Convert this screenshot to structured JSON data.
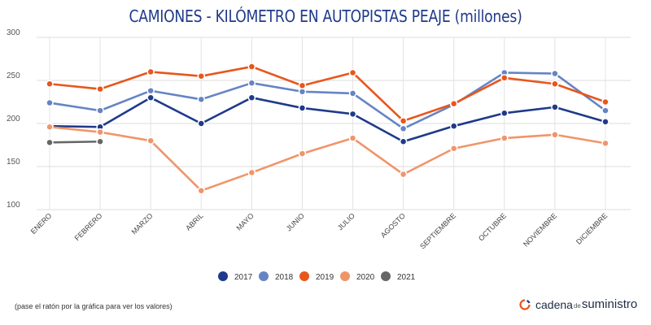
{
  "chart_data": {
    "type": "line",
    "title": "CAMIONES - KILÓMETRO EN AUTOPISTAS PEAJE (millones)",
    "xlabel": "",
    "ylabel": "",
    "ylim": [
      100,
      300
    ],
    "yticks": [
      100,
      150,
      200,
      250,
      300
    ],
    "categories": [
      "ENERO",
      "FEBRERO",
      "MARZO",
      "ABRIL",
      "MAYO",
      "JUNIO",
      "JULIO",
      "AGOSTO",
      "SEPTIEMBRE",
      "OCTUBRE",
      "NOVIEMBRE",
      "DICIEMBRE"
    ],
    "series": [
      {
        "name": "2017",
        "color": "#1f3a8a",
        "values": [
          197,
          196,
          230,
          200,
          230,
          218,
          211,
          179,
          197,
          212,
          219,
          202
        ]
      },
      {
        "name": "2018",
        "color": "#6684c4",
        "values": [
          224,
          215,
          238,
          228,
          247,
          237,
          235,
          194,
          222,
          259,
          258,
          215
        ]
      },
      {
        "name": "2019",
        "color": "#e8561c",
        "values": [
          246,
          240,
          260,
          255,
          266,
          244,
          259,
          203,
          223,
          253,
          246,
          225
        ]
      },
      {
        "name": "2020",
        "color": "#f0956a",
        "values": [
          196,
          190,
          180,
          122,
          143,
          165,
          183,
          141,
          171,
          183,
          187,
          177
        ]
      },
      {
        "name": "2021",
        "color": "#666666",
        "values": [
          178,
          179,
          null,
          null,
          null,
          null,
          null,
          null,
          null,
          null,
          null,
          null
        ]
      }
    ],
    "legend": "bottom-center"
  },
  "footer": {
    "note": "(pase el ratón por la gráfica para ver los valores)",
    "brand_part1": "cadena",
    "brand_part2": "de",
    "brand_part3": "suministro"
  }
}
